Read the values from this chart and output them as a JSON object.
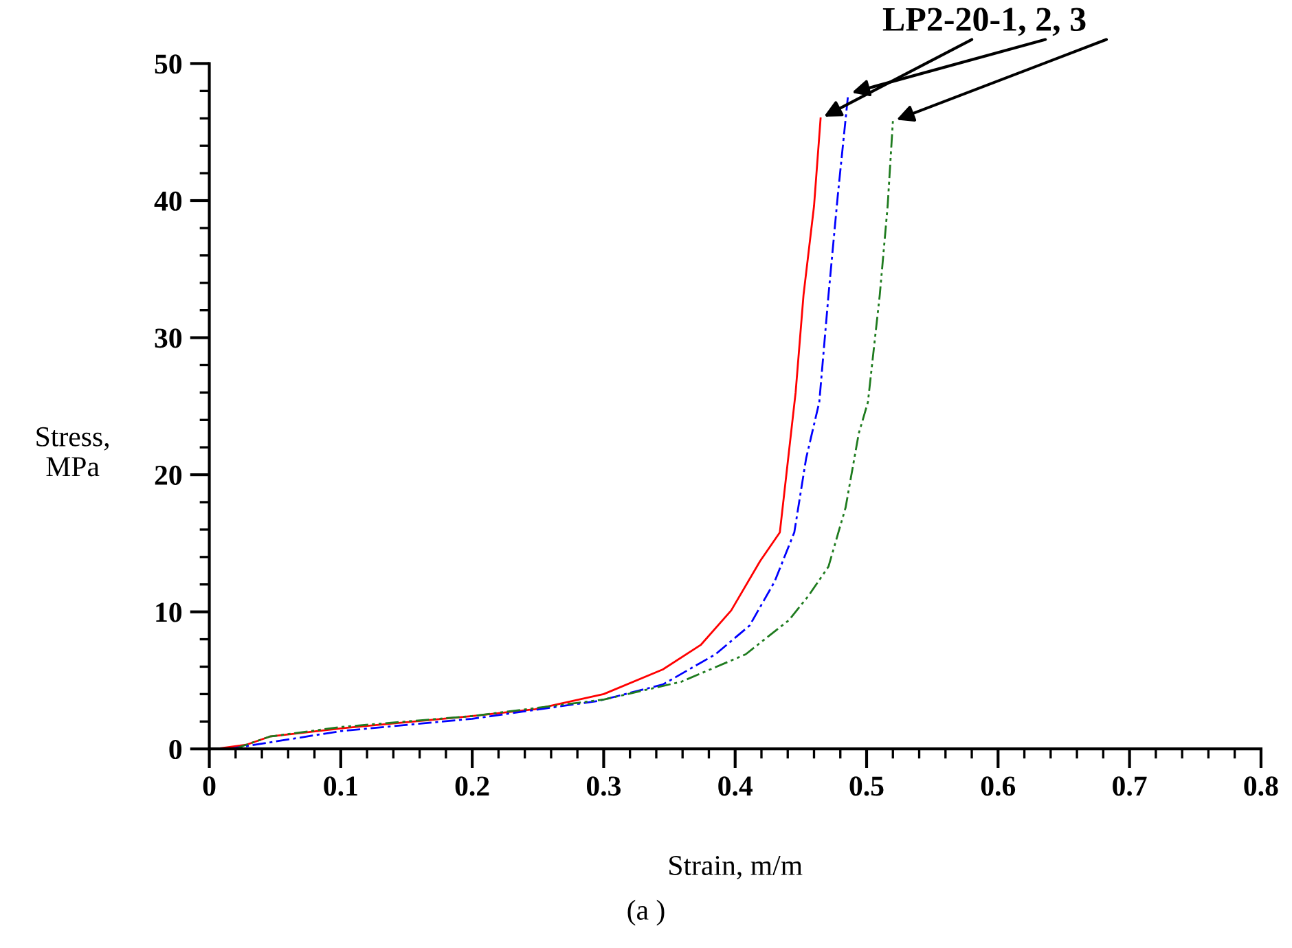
{
  "chart_data": {
    "type": "line",
    "xlabel": "Strain, m/m",
    "ylabel": "Stress,\nMPa",
    "annotations": [
      "LP2-20-1, 2, 3",
      "(a )"
    ],
    "xlim": [
      0,
      0.8
    ],
    "ylim": [
      0,
      50
    ],
    "xticks": [
      0,
      0.1,
      0.2,
      0.3,
      0.4,
      0.5,
      0.6,
      0.7,
      0.8
    ],
    "yticks": [
      0,
      10,
      20,
      30,
      40,
      50
    ],
    "grid": false,
    "marker": "none",
    "series": [
      {
        "color": "#ff0000",
        "line_style": "solid",
        "x": [
          0.005,
          0.028,
          0.046,
          0.1,
          0.2,
          0.248,
          0.3,
          0.345,
          0.374,
          0.397,
          0.419,
          0.434,
          0.446,
          0.452,
          0.46,
          0.465
        ],
        "values": [
          0,
          0.3,
          0.9,
          1.5,
          2.4,
          2.9,
          4.0,
          5.8,
          7.6,
          10.1,
          13.7,
          15.8,
          26.0,
          33.1,
          39.6,
          46.0
        ]
      },
      {
        "color": "#0000ff",
        "line_style": "dashdot",
        "x": [
          0.015,
          0.028,
          0.1,
          0.2,
          0.296,
          0.345,
          0.385,
          0.411,
          0.43,
          0.445,
          0.454,
          0.464,
          0.471,
          0.478,
          0.486
        ],
        "values": [
          0,
          0.2,
          1.3,
          2.2,
          3.5,
          4.7,
          6.9,
          9.0,
          12.2,
          15.8,
          21.2,
          25.3,
          33.1,
          40.3,
          47.8
        ]
      },
      {
        "color": "#1e7b1e",
        "line_style": "dashdotdot",
        "x": [
          0.02,
          0.025,
          0.046,
          0.1,
          0.2,
          0.3,
          0.359,
          0.408,
          0.441,
          0.456,
          0.471,
          0.484,
          0.494,
          0.501,
          0.51,
          0.516,
          0.52
        ],
        "values": [
          0,
          0.2,
          0.9,
          1.6,
          2.4,
          3.6,
          4.9,
          6.9,
          9.4,
          11.2,
          13.3,
          17.6,
          23.0,
          25.3,
          33.1,
          39.6,
          45.8
        ]
      }
    ]
  }
}
